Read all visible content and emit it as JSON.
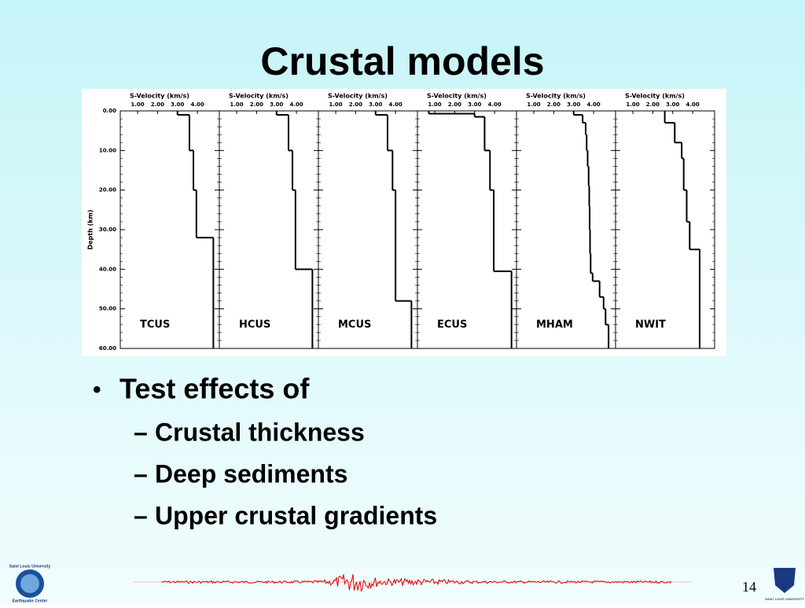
{
  "slide": {
    "title": "Crustal models",
    "bullets": [
      {
        "text": "Test effects of",
        "subitems": [
          "Crustal thickness",
          "Deep sediments",
          "Upper crustal gradients"
        ]
      }
    ],
    "page_number": "14",
    "footer_left": [
      "Saint Louis University",
      "Earthquake Center"
    ],
    "footer_right": "SAINT LOUIS UNIVERSITY"
  },
  "chart_data": [
    {
      "type": "step",
      "title": "TCUS",
      "xlabel": "S-Velocity (km/s)",
      "ylabel": "Depth (km)",
      "xlim": [
        0.13,
        5.1
      ],
      "ylim": [
        0,
        60
      ],
      "xticks": [
        {
          "value": 1,
          "label": "1.00"
        },
        {
          "value": 2,
          "label": "2.00"
        },
        {
          "value": 3,
          "label": "3.00"
        },
        {
          "value": 4,
          "label": "4.00"
        }
      ],
      "yticks": [
        {
          "value": 0,
          "label": "0.00"
        },
        {
          "value": 10,
          "label": "10.00"
        },
        {
          "value": 20,
          "label": "20.00"
        },
        {
          "value": 30,
          "label": "30.00"
        },
        {
          "value": 40,
          "label": "40.00"
        },
        {
          "value": 50,
          "label": "50.00"
        },
        {
          "value": 60,
          "label": "60.00"
        }
      ],
      "depths": [
        0,
        1,
        10,
        20,
        32,
        60
      ],
      "velocity": [
        3.0,
        3.6,
        3.8,
        3.95,
        4.8
      ],
      "color": "#000000"
    },
    {
      "type": "step",
      "title": "HCUS",
      "xlabel": "S-Velocity (km/s)",
      "xlim": [
        0.13,
        5.1
      ],
      "ylim": [
        0,
        60
      ],
      "xticks": [
        {
          "value": 1,
          "label": "1.00"
        },
        {
          "value": 2,
          "label": "2.00"
        },
        {
          "value": 3,
          "label": "3.00"
        },
        {
          "value": 4,
          "label": "4.00"
        }
      ],
      "depths": [
        0,
        1,
        10,
        20,
        40,
        60
      ],
      "velocity": [
        3.0,
        3.6,
        3.8,
        3.95,
        4.8
      ],
      "color": "#000000"
    },
    {
      "type": "step",
      "title": "MCUS",
      "xlabel": "S-Velocity (km/s)",
      "xlim": [
        0.13,
        5.1
      ],
      "ylim": [
        0,
        60
      ],
      "xticks": [
        {
          "value": 1,
          "label": "1.00"
        },
        {
          "value": 2,
          "label": "2.00"
        },
        {
          "value": 3,
          "label": "3.00"
        },
        {
          "value": 4,
          "label": "4.00"
        }
      ],
      "depths": [
        0,
        1,
        10,
        20,
        48,
        60
      ],
      "velocity": [
        3.0,
        3.6,
        3.85,
        4.0,
        4.8
      ],
      "color": "#000000"
    },
    {
      "type": "step",
      "title": "ECUS",
      "xlabel": "S-Velocity (km/s)",
      "xlim": [
        0.13,
        5.1
      ],
      "ylim": [
        0,
        60
      ],
      "xticks": [
        {
          "value": 1,
          "label": "1.00"
        },
        {
          "value": 2,
          "label": "2.00"
        },
        {
          "value": 3,
          "label": "3.00"
        },
        {
          "value": 4,
          "label": "4.00"
        }
      ],
      "depths": [
        0,
        0.7,
        1.5,
        10,
        20,
        40.5,
        60
      ],
      "velocity": [
        0.7,
        3.0,
        3.5,
        3.77,
        3.96,
        4.85
      ],
      "color": "#000000"
    },
    {
      "type": "step",
      "title": "MHAM",
      "xlabel": "S-Velocity (km/s)",
      "xlim": [
        0.13,
        5.1
      ],
      "ylim": [
        0,
        60
      ],
      "xticks": [
        {
          "value": 1,
          "label": "1.00"
        },
        {
          "value": 2,
          "label": "2.00"
        },
        {
          "value": 3,
          "label": "3.00"
        },
        {
          "value": 4,
          "label": "4.00"
        }
      ],
      "depths": [
        0,
        1,
        3,
        6,
        10,
        14,
        19,
        24,
        30,
        36,
        41,
        43,
        47,
        50,
        54,
        60
      ],
      "velocity": [
        3.0,
        3.45,
        3.6,
        3.65,
        3.7,
        3.75,
        3.78,
        3.8,
        3.82,
        3.85,
        3.95,
        4.3,
        4.5,
        4.6,
        4.75
      ],
      "color": "#000000"
    },
    {
      "type": "step",
      "title": "NWIT",
      "xlabel": "S-Velocity (km/s)",
      "xlim": [
        0.13,
        5.1
      ],
      "ylim": [
        0,
        60
      ],
      "xticks": [
        {
          "value": 1,
          "label": "1.00"
        },
        {
          "value": 2,
          "label": "2.00"
        },
        {
          "value": 3,
          "label": "3.00"
        },
        {
          "value": 4,
          "label": "4.00"
        }
      ],
      "depths": [
        0,
        3,
        8,
        12,
        20,
        28,
        35,
        60
      ],
      "velocity": [
        2.6,
        3.1,
        3.45,
        3.55,
        3.7,
        3.85,
        4.35
      ],
      "color": "#000000"
    }
  ]
}
